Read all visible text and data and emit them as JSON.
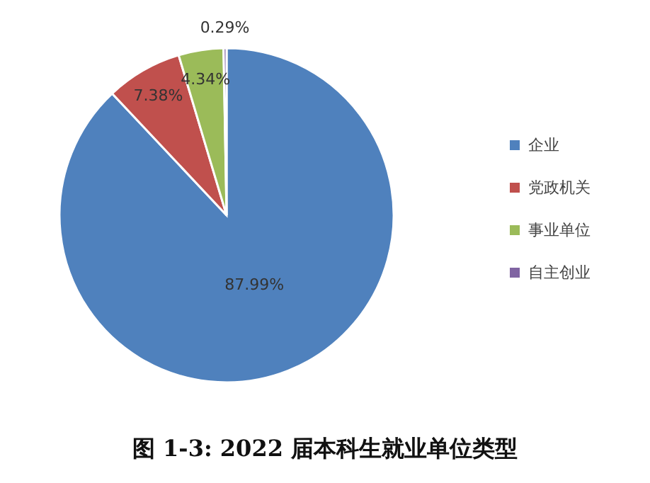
{
  "chart_data": {
    "type": "pie",
    "title": "图 1-3:  2022 届本科生就业单位类型",
    "categories": [
      "企业",
      "党政机关",
      "事业单位",
      "自主创业"
    ],
    "values": [
      87.99,
      7.38,
      4.34,
      0.29
    ],
    "colors": [
      "#4f81bd",
      "#c0504d",
      "#9bbb59",
      "#8064a2"
    ],
    "value_labels": [
      "87.99%",
      "7.38%",
      "4.34%",
      "0.29%"
    ],
    "legend": "right"
  }
}
